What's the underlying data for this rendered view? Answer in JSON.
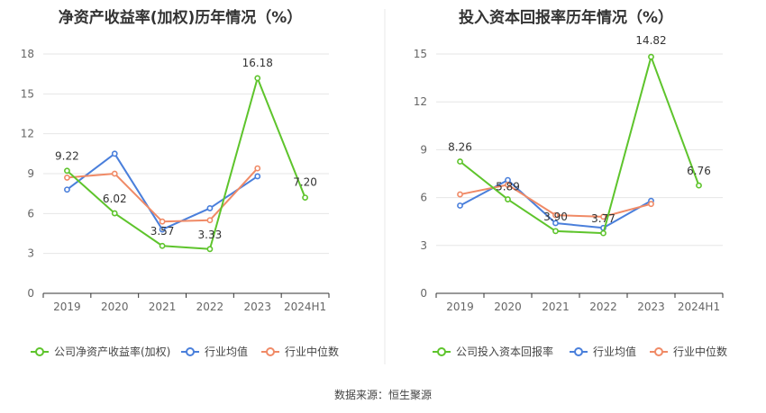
{
  "source": "数据来源：恒生聚源",
  "colors": {
    "company": "#5ec42c",
    "avg": "#4a7fdb",
    "median": "#f08a66",
    "grid": "#e6e6e6",
    "axis": "#333333",
    "divider": "#e8e8e8"
  },
  "chart_data": [
    {
      "type": "line",
      "title": "净资产收益率(加权)历年情况（%）",
      "categories": [
        "2019",
        "2020",
        "2021",
        "2022",
        "2023",
        "2024H1"
      ],
      "yticks": [
        "0",
        "3",
        "6",
        "9",
        "12",
        "15",
        "18"
      ],
      "ylim": [
        0,
        18
      ],
      "grid": true,
      "legend_position": "bottom",
      "series": [
        {
          "name": "公司净资产收益率(加权)",
          "key": "company",
          "values": [
            9.22,
            6.02,
            3.57,
            3.33,
            16.18,
            7.2
          ],
          "labels": [
            "9.22",
            "6.02",
            "3.57",
            "3.33",
            "16.18",
            "7.20"
          ]
        },
        {
          "name": "行业均值",
          "key": "avg",
          "values": [
            7.8,
            10.5,
            4.8,
            6.4,
            8.8,
            null
          ]
        },
        {
          "name": "行业中位数",
          "key": "median",
          "values": [
            8.7,
            9.0,
            5.4,
            5.5,
            9.4,
            null
          ]
        }
      ]
    },
    {
      "type": "line",
      "title": "投入资本回报率历年情况（%）",
      "categories": [
        "2019",
        "2020",
        "2021",
        "2022",
        "2023",
        "2024H1"
      ],
      "yticks": [
        "0",
        "3",
        "6",
        "9",
        "12",
        "15"
      ],
      "ylim": [
        0,
        15
      ],
      "grid": true,
      "legend_position": "bottom",
      "series": [
        {
          "name": "公司投入资本回报率",
          "key": "company",
          "values": [
            8.26,
            5.89,
            3.9,
            3.77,
            14.82,
            6.76
          ],
          "labels": [
            "8.26",
            "5.89",
            "3.90",
            "3.77",
            "14.82",
            "6.76"
          ]
        },
        {
          "name": "行业均值",
          "key": "avg",
          "values": [
            5.5,
            7.1,
            4.4,
            4.1,
            5.8,
            null
          ]
        },
        {
          "name": "行业中位数",
          "key": "median",
          "values": [
            6.2,
            6.8,
            4.9,
            4.8,
            5.6,
            null
          ]
        }
      ]
    }
  ]
}
